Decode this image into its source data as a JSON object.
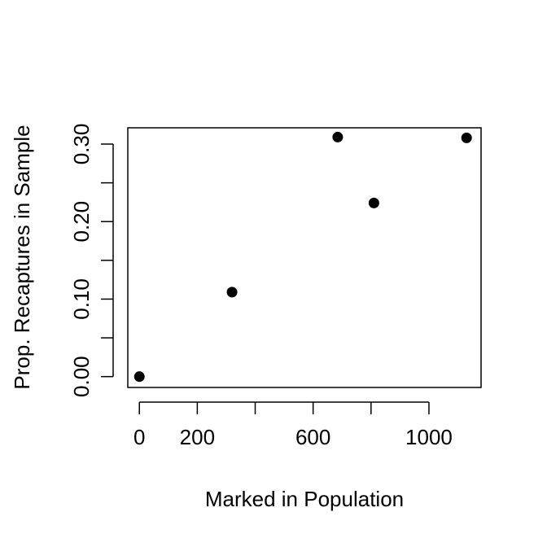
{
  "chart_data": {
    "type": "scatter",
    "title": "",
    "xlabel": "Marked in Population",
    "ylabel": "Prop. Recaptures in Sample",
    "xlim": [
      -40,
      1180
    ],
    "ylim": [
      -0.014,
      0.321
    ],
    "x_ticks": [
      0,
      200,
      400,
      600,
      800,
      1000
    ],
    "x_tick_labels": [
      "0",
      "200",
      "",
      "600",
      "",
      "1000"
    ],
    "y_ticks": [
      0.0,
      0.05,
      0.1,
      0.15,
      0.2,
      0.25,
      0.3
    ],
    "y_tick_labels": [
      "0.00",
      "",
      "0.10",
      "",
      "0.20",
      "",
      "0.30"
    ],
    "grid": false,
    "legend": "none",
    "marker_color": "#000000",
    "series": [
      {
        "x": [
          0,
          320,
          685,
          810,
          1130
        ],
        "y": [
          0.0,
          0.109,
          0.309,
          0.224,
          0.308
        ]
      }
    ]
  }
}
